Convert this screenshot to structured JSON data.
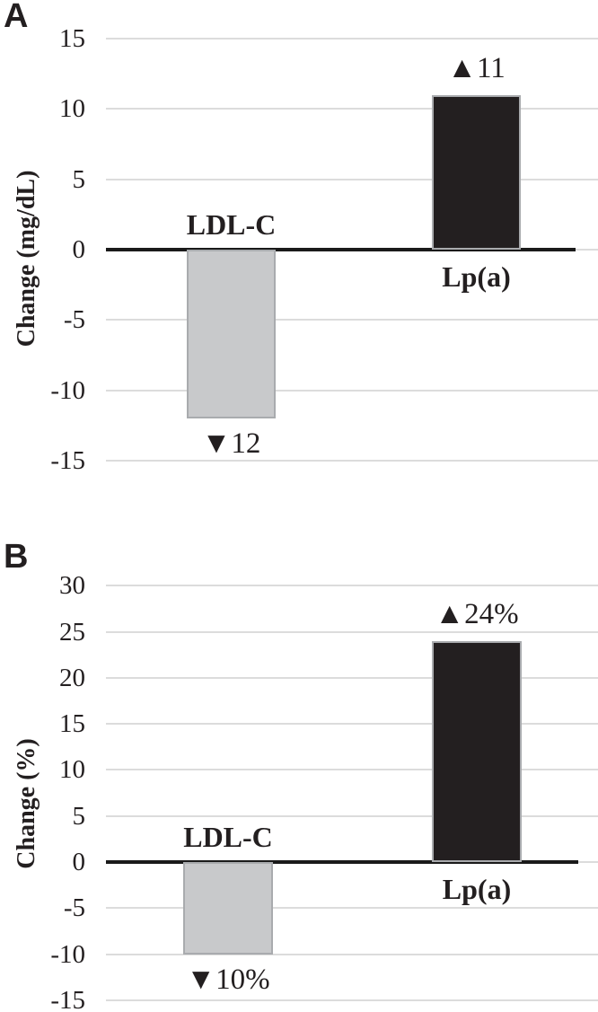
{
  "figure": {
    "panel_letters": [
      "A",
      "B"
    ]
  },
  "colors": {
    "bar_gray": "#c8c9cb",
    "bar_black": "#231f20",
    "bar_border": "#a9abae",
    "gridline": "#dcdcdc",
    "axis": "#1a1a1a",
    "text": "#231f20",
    "background": "#ffffff"
  },
  "chart_data": [
    {
      "panel": "A",
      "type": "bar",
      "title": "",
      "xlabel": "",
      "ylabel": "Change (mg/dL)",
      "categories": [
        "LDL-C",
        "Lp(a)"
      ],
      "values": [
        -12,
        11
      ],
      "bar_labels": [
        "▼12",
        "▲11"
      ],
      "bar_colors": [
        "#c8c9cb",
        "#231f20"
      ],
      "yticks": [
        15,
        10,
        5,
        0,
        -5,
        -10,
        -15
      ],
      "ylim": [
        -15,
        15
      ],
      "grid": true,
      "legend": "none"
    },
    {
      "panel": "B",
      "type": "bar",
      "title": "",
      "xlabel": "",
      "ylabel": "Change (%)",
      "categories": [
        "LDL-C",
        "Lp(a)"
      ],
      "values": [
        -10,
        24
      ],
      "bar_labels": [
        "▼10%",
        "▲24%"
      ],
      "bar_colors": [
        "#c8c9cb",
        "#231f20"
      ],
      "yticks": [
        30,
        25,
        20,
        15,
        10,
        5,
        0,
        -5,
        -10,
        -15
      ],
      "ylim": [
        -15,
        30
      ],
      "grid": true,
      "legend": "none"
    }
  ]
}
